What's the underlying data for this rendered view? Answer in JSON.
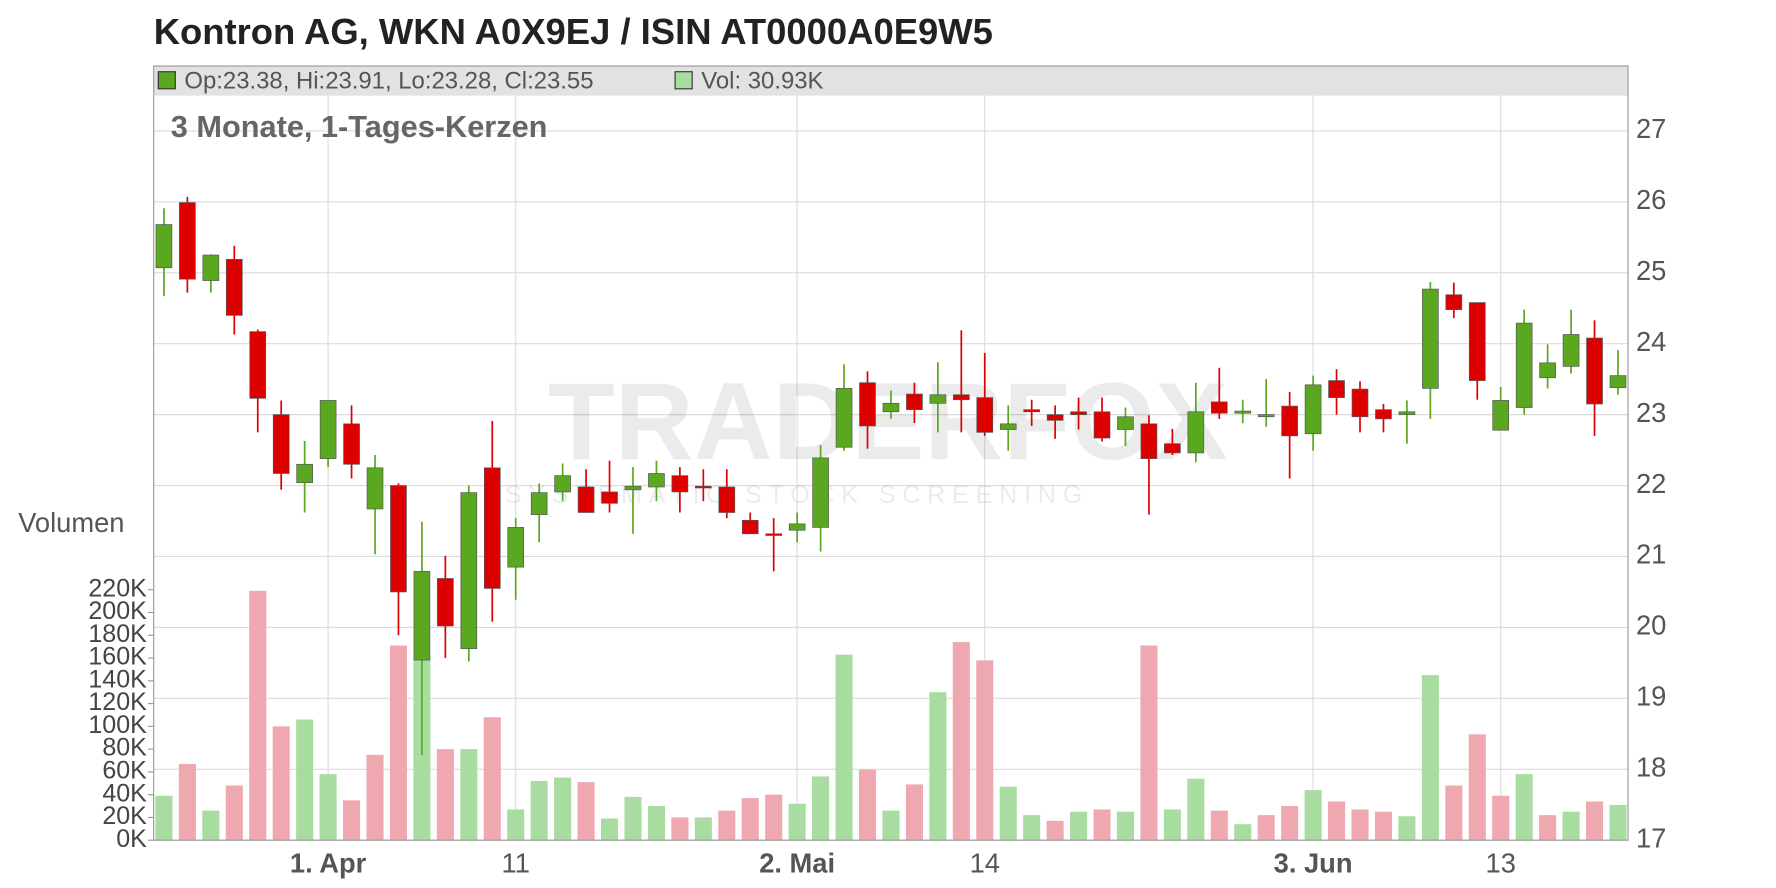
{
  "chart_data": {
    "type": "candlestick",
    "title": "Kontron AG, WKN A0X9EJ / ISIN AT0000A0E9W5",
    "subtitle": "3 Monate, 1-Tages-Kerzen",
    "ohlc_info": "Op:23.38, Hi:23.91, Lo:23.28, Cl:23.55",
    "volume_info": "Vol: 30.93K",
    "volume_axis_label": "Volumen",
    "watermark": "TRADERFOX",
    "watermark_sub": "SYSTEMATIC STOCK SCREENING",
    "categories": [
      null,
      null,
      null,
      null,
      null,
      null,
      null,
      "1. Apr",
      null,
      null,
      null,
      null,
      null,
      null,
      null,
      "11",
      null,
      null,
      null,
      null,
      null,
      null,
      null,
      null,
      null,
      null,
      null,
      "2. Mai",
      null,
      null,
      null,
      null,
      null,
      null,
      null,
      "14",
      null,
      null,
      null,
      null,
      null,
      null,
      null,
      null,
      null,
      null,
      null,
      null,
      null,
      "3. Jun",
      null,
      null,
      null,
      null,
      null,
      null,
      null,
      "13",
      null,
      null,
      null,
      null,
      null
    ],
    "open": [
      25.07,
      25.99,
      24.89,
      25.19,
      24.17,
      23.0,
      22.04,
      22.38,
      22.87,
      21.67,
      22.0,
      19.54,
      20.69,
      19.7,
      22.25,
      20.85,
      21.59,
      21.91,
      21.98,
      21.91,
      21.94,
      21.98,
      22.14,
      21.99,
      21.98,
      21.51,
      21.32,
      21.37,
      21.41,
      22.54,
      23.45,
      23.04,
      23.29,
      23.16,
      23.28,
      23.24,
      22.79,
      23.07,
      23.0,
      23.04,
      23.04,
      22.79,
      22.87,
      22.59,
      22.46,
      23.18,
      23.02,
      22.97,
      23.12,
      22.73,
      23.48,
      23.36,
      23.07,
      23.0,
      23.37,
      24.69,
      24.58,
      22.78,
      23.1,
      23.52,
      23.68,
      24.08,
      23.38
    ],
    "high": [
      25.91,
      26.07,
      25.26,
      25.38,
      24.2,
      23.2,
      22.63,
      23.2,
      23.13,
      22.43,
      22.03,
      21.49,
      21.01,
      22.0,
      22.91,
      21.54,
      22.03,
      22.31,
      22.23,
      22.35,
      22.26,
      22.35,
      22.26,
      22.23,
      22.23,
      21.62,
      21.54,
      21.62,
      22.57,
      23.71,
      23.61,
      23.34,
      23.45,
      23.74,
      24.19,
      23.87,
      23.13,
      23.21,
      23.13,
      23.24,
      23.24,
      23.1,
      22.99,
      22.8,
      23.45,
      23.66,
      23.21,
      23.5,
      23.32,
      23.55,
      23.64,
      23.47,
      23.15,
      23.2,
      24.87,
      24.86,
      24.58,
      23.39,
      24.48,
      23.99,
      24.48,
      24.33,
      23.91
    ],
    "low": [
      24.67,
      24.72,
      24.72,
      24.13,
      22.75,
      21.94,
      21.62,
      22.26,
      22.1,
      21.03,
      19.89,
      18.2,
      19.57,
      19.52,
      20.08,
      20.39,
      21.2,
      21.78,
      21.62,
      21.62,
      21.32,
      21.78,
      21.62,
      21.78,
      21.54,
      21.32,
      20.79,
      21.2,
      21.07,
      22.49,
      22.52,
      22.94,
      22.88,
      22.75,
      22.75,
      22.7,
      22.49,
      22.84,
      22.66,
      22.79,
      22.62,
      22.56,
      21.59,
      22.43,
      22.33,
      22.94,
      22.88,
      22.83,
      22.1,
      22.49,
      23.0,
      22.75,
      22.75,
      22.59,
      22.94,
      24.36,
      23.21,
      22.78,
      23.0,
      23.37,
      23.58,
      22.7,
      23.28
    ],
    "close": [
      25.68,
      24.91,
      25.25,
      24.4,
      23.23,
      22.17,
      22.3,
      23.2,
      22.3,
      22.25,
      20.5,
      20.79,
      20.02,
      21.9,
      20.55,
      21.41,
      21.9,
      22.14,
      21.62,
      21.75,
      21.99,
      22.17,
      21.91,
      21.97,
      21.62,
      21.32,
      21.3,
      21.46,
      22.39,
      23.37,
      22.84,
      23.16,
      23.07,
      23.28,
      23.21,
      22.75,
      22.87,
      23.04,
      22.92,
      23.0,
      22.67,
      22.97,
      22.38,
      22.46,
      23.04,
      23.02,
      23.05,
      23.0,
      22.7,
      23.42,
      23.24,
      22.97,
      22.94,
      23.04,
      24.77,
      24.48,
      23.48,
      23.2,
      24.29,
      23.73,
      24.13,
      23.15,
      23.55
    ],
    "volume": [
      39,
      67,
      26,
      48,
      219,
      100,
      106,
      58,
      35,
      75,
      171,
      160,
      80,
      80,
      108,
      27,
      52,
      55,
      51,
      19,
      38,
      30,
      20,
      20,
      26,
      37,
      40,
      32,
      56,
      163,
      62,
      26,
      49,
      130,
      174,
      158,
      47,
      22,
      17,
      25,
      27,
      25,
      171,
      27,
      54,
      26,
      14,
      22,
      30,
      44,
      34,
      27,
      25,
      21,
      145,
      48,
      93,
      39,
      58,
      22,
      25,
      34,
      30.93
    ],
    "up_color": "#5aa820",
    "down_color": "#dd0000",
    "volume_up_color": "#a8dca0",
    "volume_down_color": "#f0a8b0",
    "ylim": [
      17,
      27
    ],
    "yticks": [
      17,
      18,
      19,
      20,
      21,
      22,
      23,
      24,
      25,
      26,
      27
    ],
    "y2lim": [
      0,
      220
    ],
    "y2ticks": [
      {
        "value": 0,
        "label": "0K"
      },
      {
        "value": 20,
        "label": "20K"
      },
      {
        "value": 40,
        "label": "40K"
      },
      {
        "value": 60,
        "label": "60K"
      },
      {
        "value": 80,
        "label": "80K"
      },
      {
        "value": 100,
        "label": "100K"
      },
      {
        "value": 120,
        "label": "120K"
      },
      {
        "value": 140,
        "label": "140K"
      },
      {
        "value": 160,
        "label": "160K"
      },
      {
        "value": 180,
        "label": "180K"
      },
      {
        "value": 200,
        "label": "200K"
      },
      {
        "value": 220,
        "label": "220K"
      }
    ],
    "grid": true
  }
}
